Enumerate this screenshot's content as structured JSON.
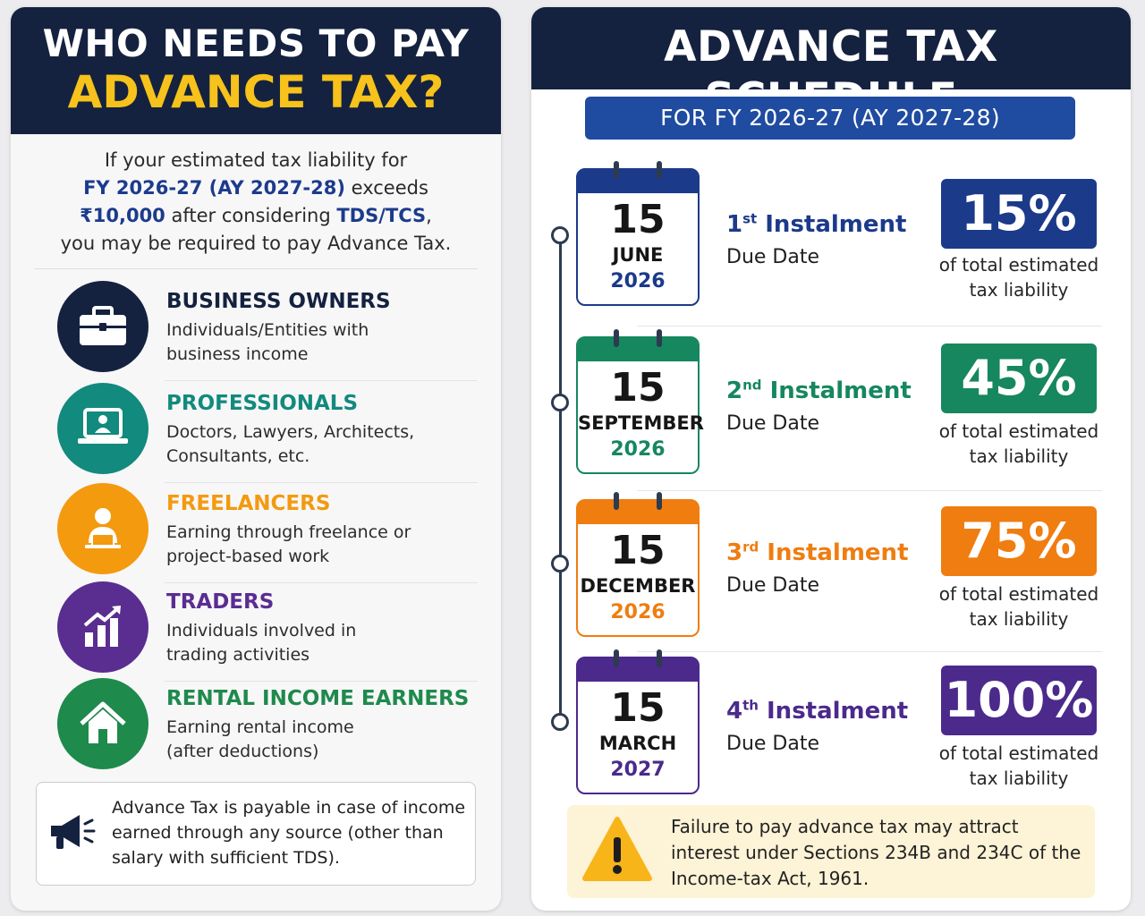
{
  "left": {
    "title_line1": "WHO NEEDS TO PAY",
    "title_line2": "ADVANCE TAX?",
    "intro": {
      "t1": "If your estimated tax liability for",
      "t2a": "FY 2026-27 (AY 2027-28)",
      "t2b": " exceeds",
      "t3a": "₹10,000",
      "t3b": " after considering ",
      "t3c": "TDS/TCS",
      "t3d": ",",
      "t4": "you may be required to pay Advance Tax."
    },
    "categories": [
      {
        "title": "BUSINESS OWNERS",
        "desc1": "Individuals/Entities with",
        "desc2": "business income",
        "color": "#14223f",
        "icon": "briefcase-icon"
      },
      {
        "title": "PROFESSIONALS",
        "desc1": "Doctors, Lawyers, Architects,",
        "desc2": "Consultants, etc.",
        "color": "#128a7e",
        "icon": "laptop-user-icon"
      },
      {
        "title": "FREELANCERS",
        "desc1": "Earning through freelance or",
        "desc2": "project-based work",
        "color": "#f39a0f",
        "icon": "person-laptop-icon"
      },
      {
        "title": "TRADERS",
        "desc1": "Individuals involved in",
        "desc2": "trading activities",
        "color": "#5a2d91",
        "icon": "growth-chart-icon"
      },
      {
        "title": "RENTAL INCOME EARNERS",
        "desc1": "Earning rental income",
        "desc2": "(after deductions)",
        "color": "#1e8a4c",
        "icon": "house-icon"
      }
    ],
    "note": "Advance Tax is payable in case of income earned through any source (other than salary with sufficient TDS)."
  },
  "right": {
    "title": "ADVANCE TAX SCHEDULE",
    "fy_label": "FOR FY 2026-27 (AY 2027-28)",
    "instalments": [
      {
        "day": "15",
        "month": "JUNE",
        "year": "2026",
        "ordinal": "1",
        "suffix": "st",
        "label": " Instalment",
        "due": "Due Date",
        "percent": "15%",
        "pct_desc1": "of total estimated",
        "pct_desc2": "tax liability",
        "color": "#1c3a8a"
      },
      {
        "day": "15",
        "month": "SEPTEMBER",
        "year": "2026",
        "ordinal": "2",
        "suffix": "nd",
        "label": " Instalment",
        "due": "Due Date",
        "percent": "45%",
        "pct_desc1": "of total estimated",
        "pct_desc2": "tax liability",
        "color": "#16875f"
      },
      {
        "day": "15",
        "month": "DECEMBER",
        "year": "2026",
        "ordinal": "3",
        "suffix": "rd",
        "label": " Instalment",
        "due": "Due Date",
        "percent": "75%",
        "pct_desc1": "of total estimated",
        "pct_desc2": "tax liability",
        "color": "#ef7d10"
      },
      {
        "day": "15",
        "month": "MARCH",
        "year": "2027",
        "ordinal": "4",
        "suffix": "th",
        "label": " Instalment",
        "due": "Due Date",
        "percent": "100%",
        "pct_desc1": "of total estimated",
        "pct_desc2": "tax liability",
        "color": "#4b2a8c"
      }
    ],
    "warning": "Failure to pay advance tax may attract interest under Sections 234B and 234C of the Income-tax Act, 1961."
  },
  "colors": {
    "navy": "#14223f",
    "gold": "#f6c21b",
    "fy_blue": "#1f4ba0",
    "warn_bg": "#fdf3d6"
  }
}
